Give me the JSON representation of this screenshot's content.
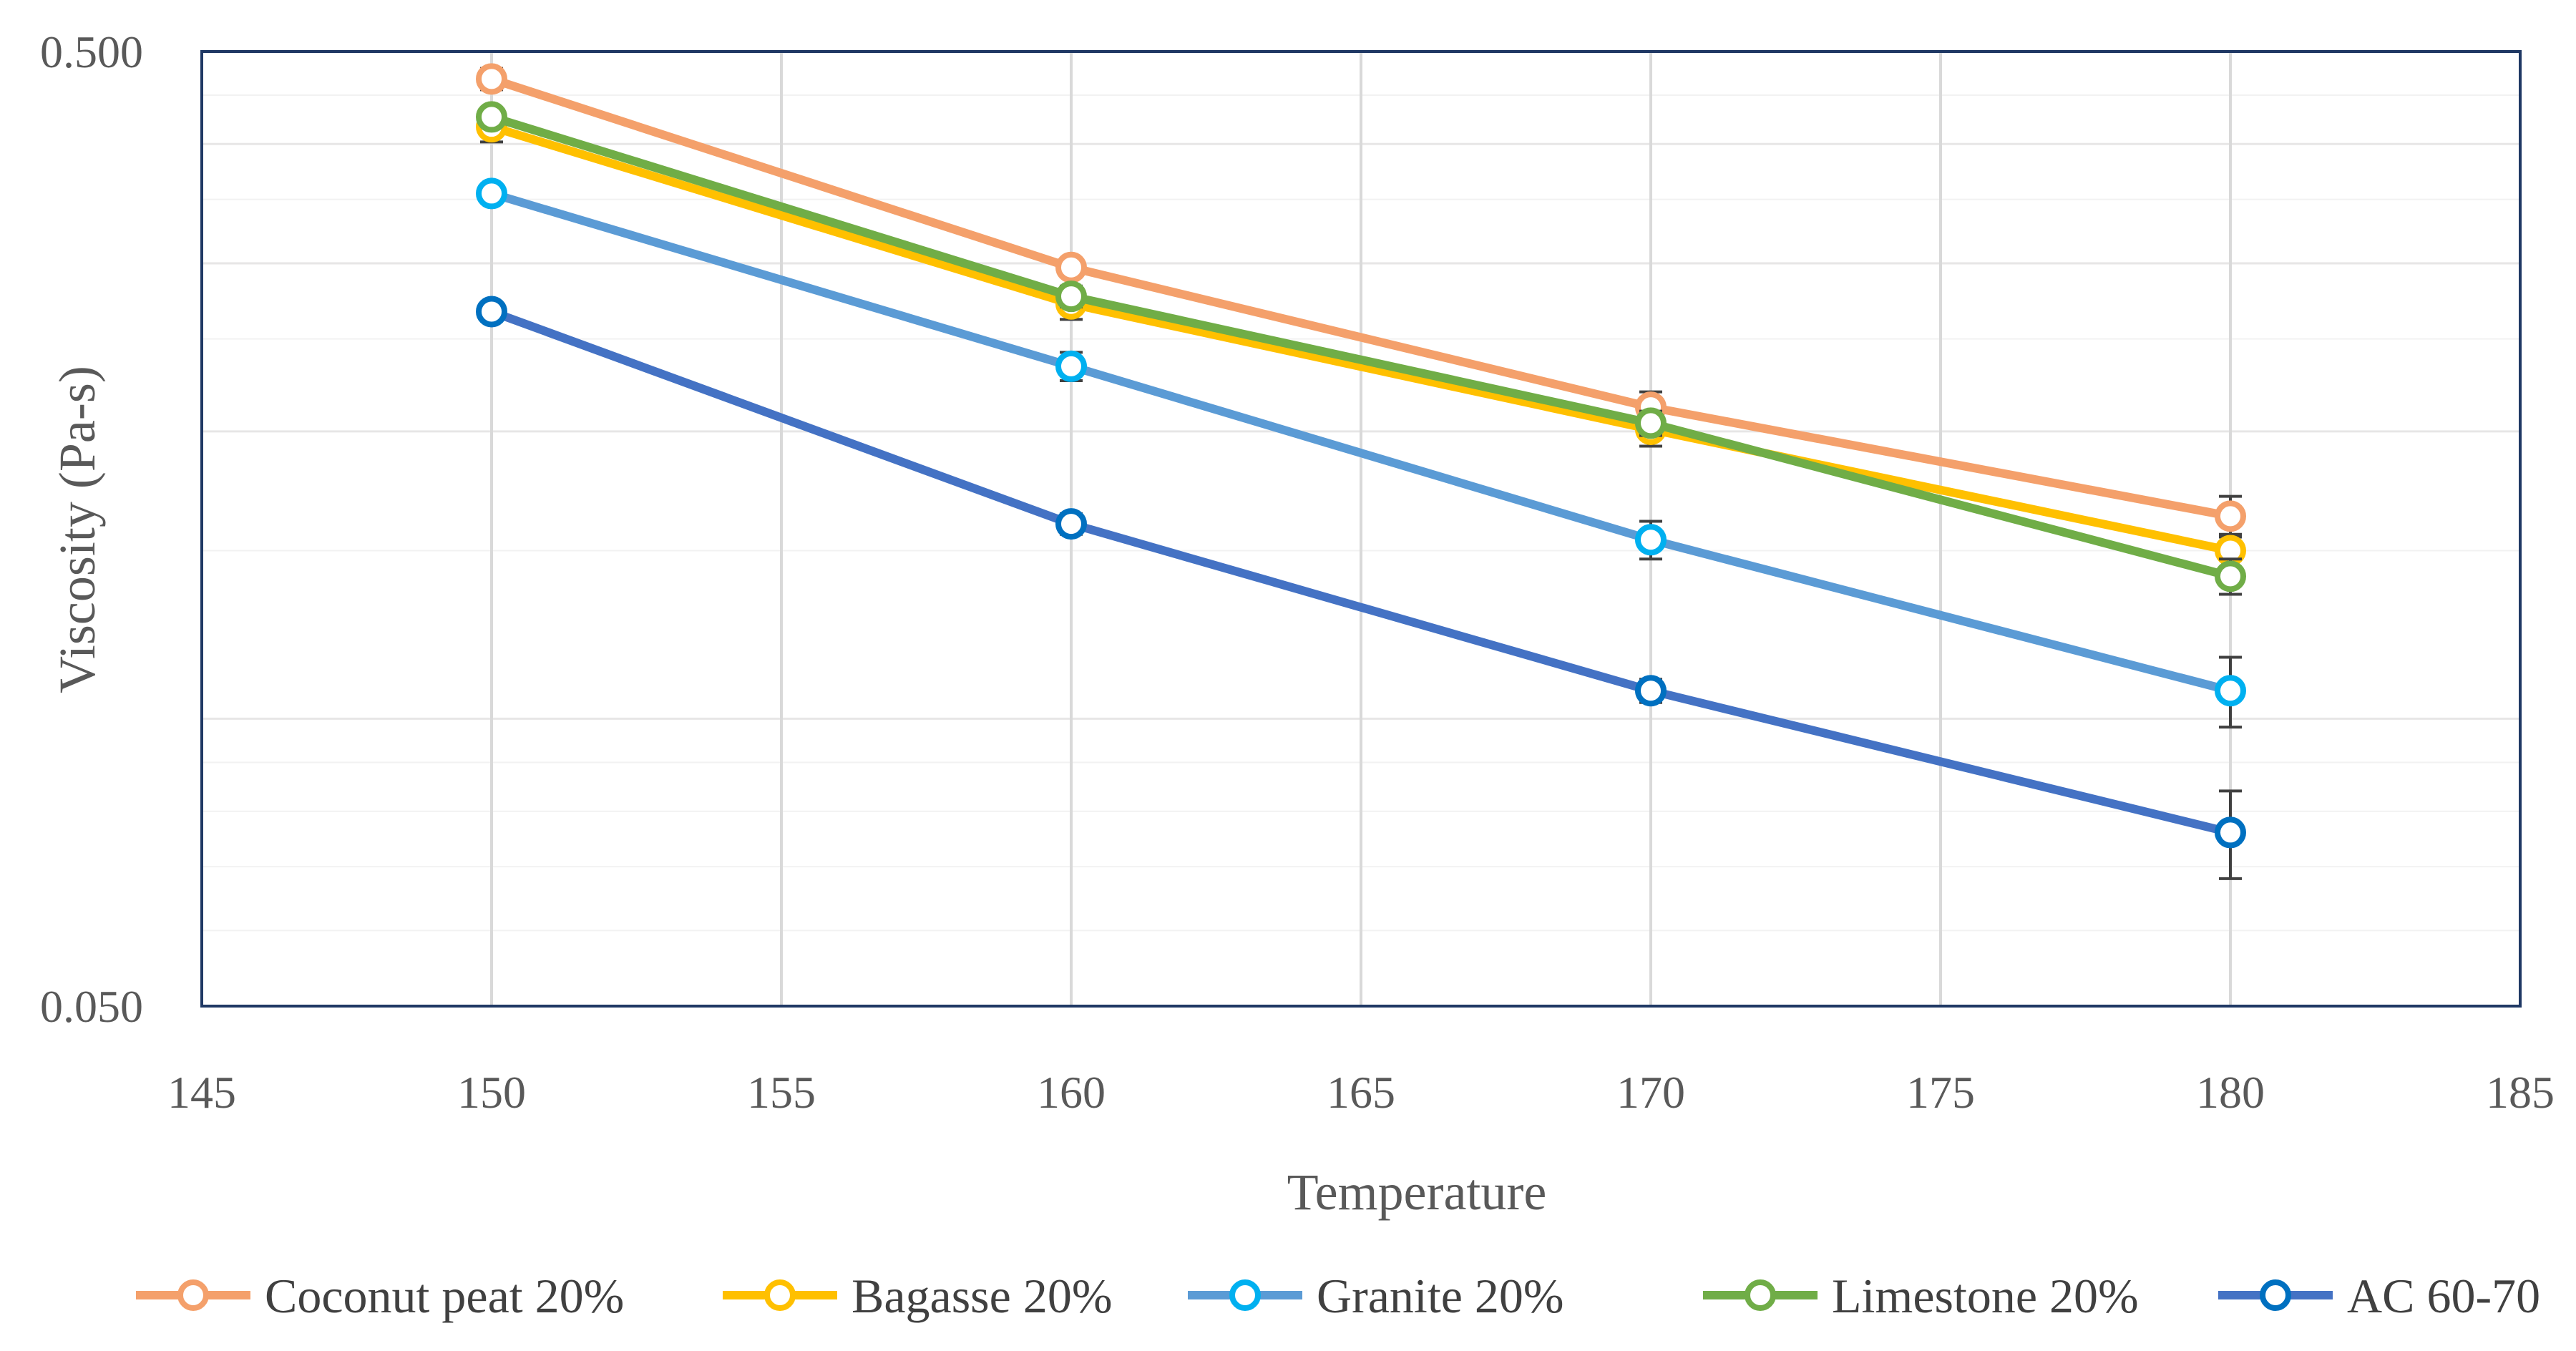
{
  "chart_data": {
    "type": "line",
    "xlabel": "Temperature",
    "ylabel": "Viscosity (Pa-s)",
    "xlim": [
      145,
      185
    ],
    "x_ticks": [
      "145",
      "150",
      "155",
      "160",
      "165",
      "170",
      "175",
      "180",
      "185"
    ],
    "ylim": [
      0.05,
      0.5
    ],
    "y_scale": "log",
    "y_ticks": [
      "0.050",
      "0.500"
    ],
    "grid": "vertical major lines, horizontal minor log lines",
    "legend": "bottom",
    "x": [
      150,
      160,
      170,
      180
    ],
    "series": [
      {
        "name": "Coconut peat 20%",
        "values": [
          0.468,
          0.297,
          0.212,
          0.163
        ],
        "errors": [
          0.012,
          0.005,
          0.008,
          0.008
        ],
        "color": "#F4A06B",
        "marker": "#F4A06B"
      },
      {
        "name": "Bagasse 20%",
        "values": [
          0.417,
          0.272,
          0.201,
          0.15
        ],
        "errors": [
          0.015,
          0.01,
          0.008,
          0.006
        ],
        "color": "#FFC000",
        "marker": "#FFC000"
      },
      {
        "name": "Granite 20%",
        "values": [
          0.355,
          0.234,
          0.154,
          0.107
        ],
        "errors": [
          0.004,
          0.008,
          0.007,
          0.009
        ],
        "color": "#5B9BD5",
        "marker": "#00B0F0"
      },
      {
        "name": "Limestone 20%",
        "values": [
          0.427,
          0.277,
          0.204,
          0.141
        ],
        "errors": [
          0.007,
          0.007,
          0.006,
          0.006
        ],
        "color": "#70AD47",
        "marker": "#70AD47"
      },
      {
        "name": "AC 60-70",
        "values": [
          0.267,
          0.16,
          0.107,
          0.076
        ],
        "errors": [
          0.006,
          0.004,
          0.003,
          0.008
        ],
        "color": "#4472C4",
        "marker": "#0070C0"
      }
    ]
  }
}
